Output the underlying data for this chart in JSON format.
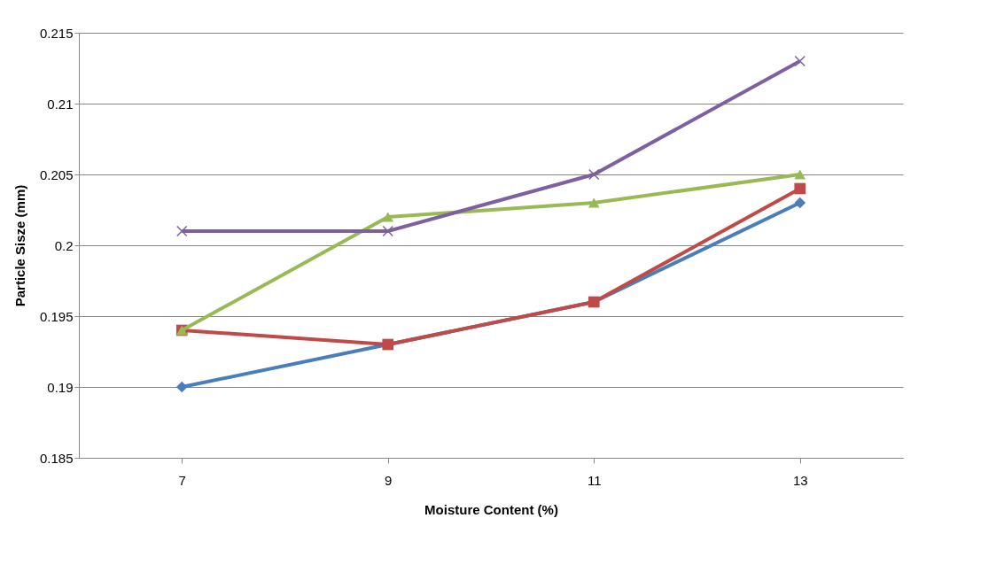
{
  "chart_data": {
    "type": "line",
    "xlabel": "Moisture Content (%)",
    "ylabel": "Particle Sisze (mm)",
    "categories": [
      "7",
      "9",
      "11",
      "13"
    ],
    "series": [
      {
        "color": "#4a7ebb",
        "marker": "diamond",
        "values": [
          0.19,
          0.193,
          0.196,
          0.203
        ]
      },
      {
        "color": "#be4b48",
        "marker": "square",
        "values": [
          0.194,
          0.193,
          0.196,
          0.204
        ]
      },
      {
        "color": "#98b954",
        "marker": "triangle",
        "values": [
          0.194,
          0.202,
          0.203,
          0.205
        ]
      },
      {
        "color": "#7d60a0",
        "marker": "cross",
        "values": [
          0.201,
          0.201,
          0.205,
          0.213
        ]
      }
    ],
    "ylim": [
      0.185,
      0.215
    ],
    "yticks": [
      0.185,
      0.19,
      0.195,
      0.2,
      0.205,
      0.21,
      0.215
    ],
    "grid": "y",
    "line_style": "solid"
  }
}
